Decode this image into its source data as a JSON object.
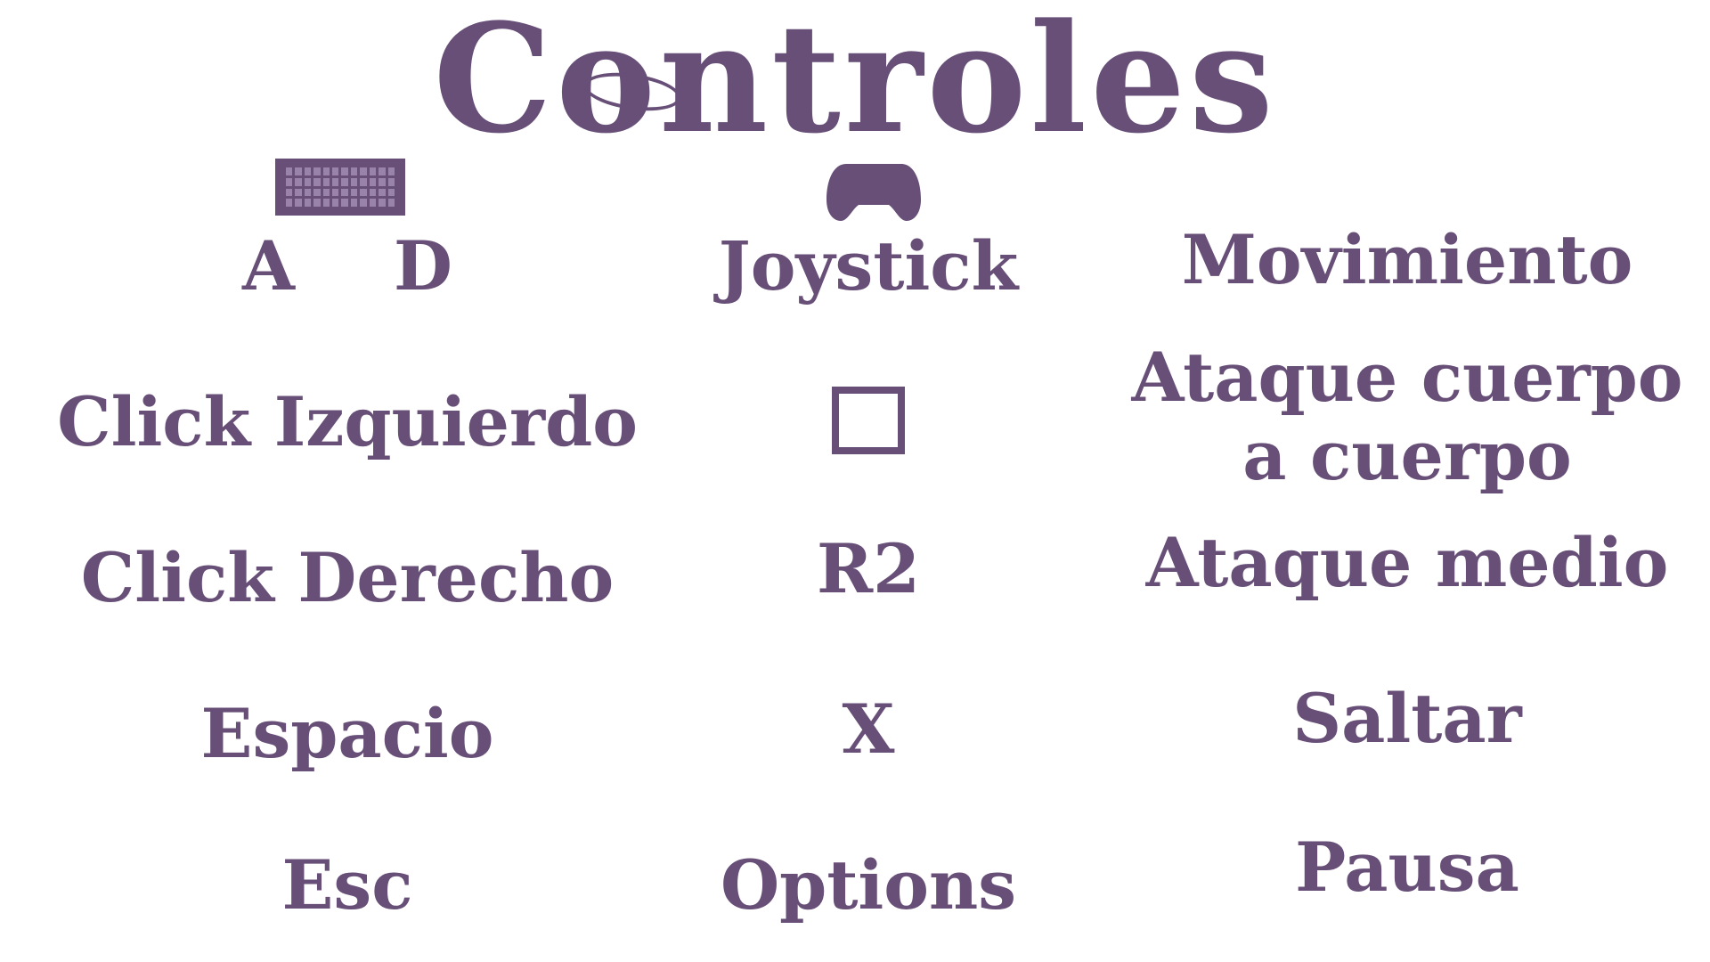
{
  "screen": {
    "title": "Controles"
  },
  "controls": {
    "move": {
      "keyboard_keys": [
        "A",
        "D"
      ],
      "gamepad": "Joystick",
      "action": "Movimiento"
    },
    "melee": {
      "keyboard": "Click Izquierdo",
      "gamepad_icon": "square-button-icon",
      "action_line1": "Ataque cuerpo",
      "action_line2": "a cuerpo"
    },
    "mid": {
      "keyboard": "Click Derecho",
      "gamepad": "R2",
      "action": "Ataque medio"
    },
    "jump": {
      "keyboard": "Espacio",
      "gamepad": "X",
      "action": "Saltar"
    },
    "pause": {
      "keyboard": "Esc",
      "gamepad": "Options",
      "action": "Pausa"
    }
  },
  "icons": {
    "keyboard": "keyboard-icon",
    "gamepad": "gamepad-icon"
  },
  "colors": {
    "text": "#674f78",
    "background": "#ffffff"
  }
}
